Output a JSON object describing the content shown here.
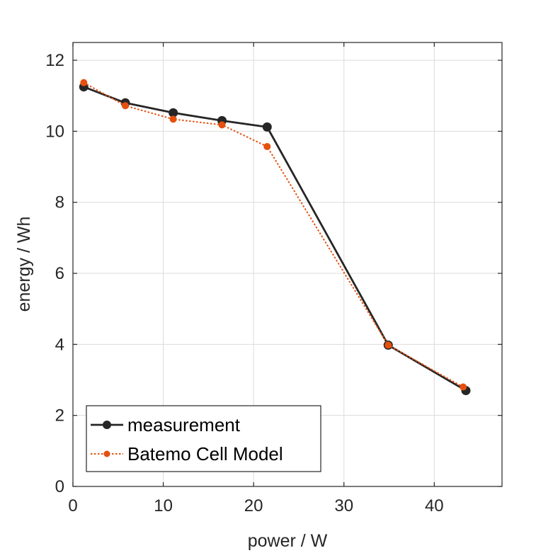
{
  "chart_data": {
    "type": "line",
    "xlabel": "power / W",
    "ylabel": "energy / Wh",
    "xlim": [
      0,
      47.5
    ],
    "ylim": [
      0,
      12.5
    ],
    "xticks": [
      0,
      10,
      20,
      30,
      40
    ],
    "yticks": [
      0,
      2,
      4,
      6,
      8,
      10,
      12
    ],
    "grid": true,
    "legend_position": "bottom-left",
    "series": [
      {
        "name": "measurement",
        "color": "#262626",
        "line_style": "solid",
        "marker": "filled-circle",
        "x": [
          1.2,
          5.8,
          11.1,
          16.5,
          21.5,
          34.9,
          43.5
        ],
        "y": [
          11.25,
          10.8,
          10.52,
          10.3,
          10.12,
          3.98,
          2.7
        ]
      },
      {
        "name": "Batemo Cell Model",
        "color": "#e5500f",
        "line_style": "dotted",
        "marker": "filled-circle",
        "x": [
          1.2,
          5.8,
          11.1,
          16.5,
          21.5,
          34.9,
          43.2
        ],
        "y": [
          11.37,
          10.72,
          10.34,
          10.18,
          9.57,
          3.98,
          2.8
        ]
      }
    ]
  }
}
